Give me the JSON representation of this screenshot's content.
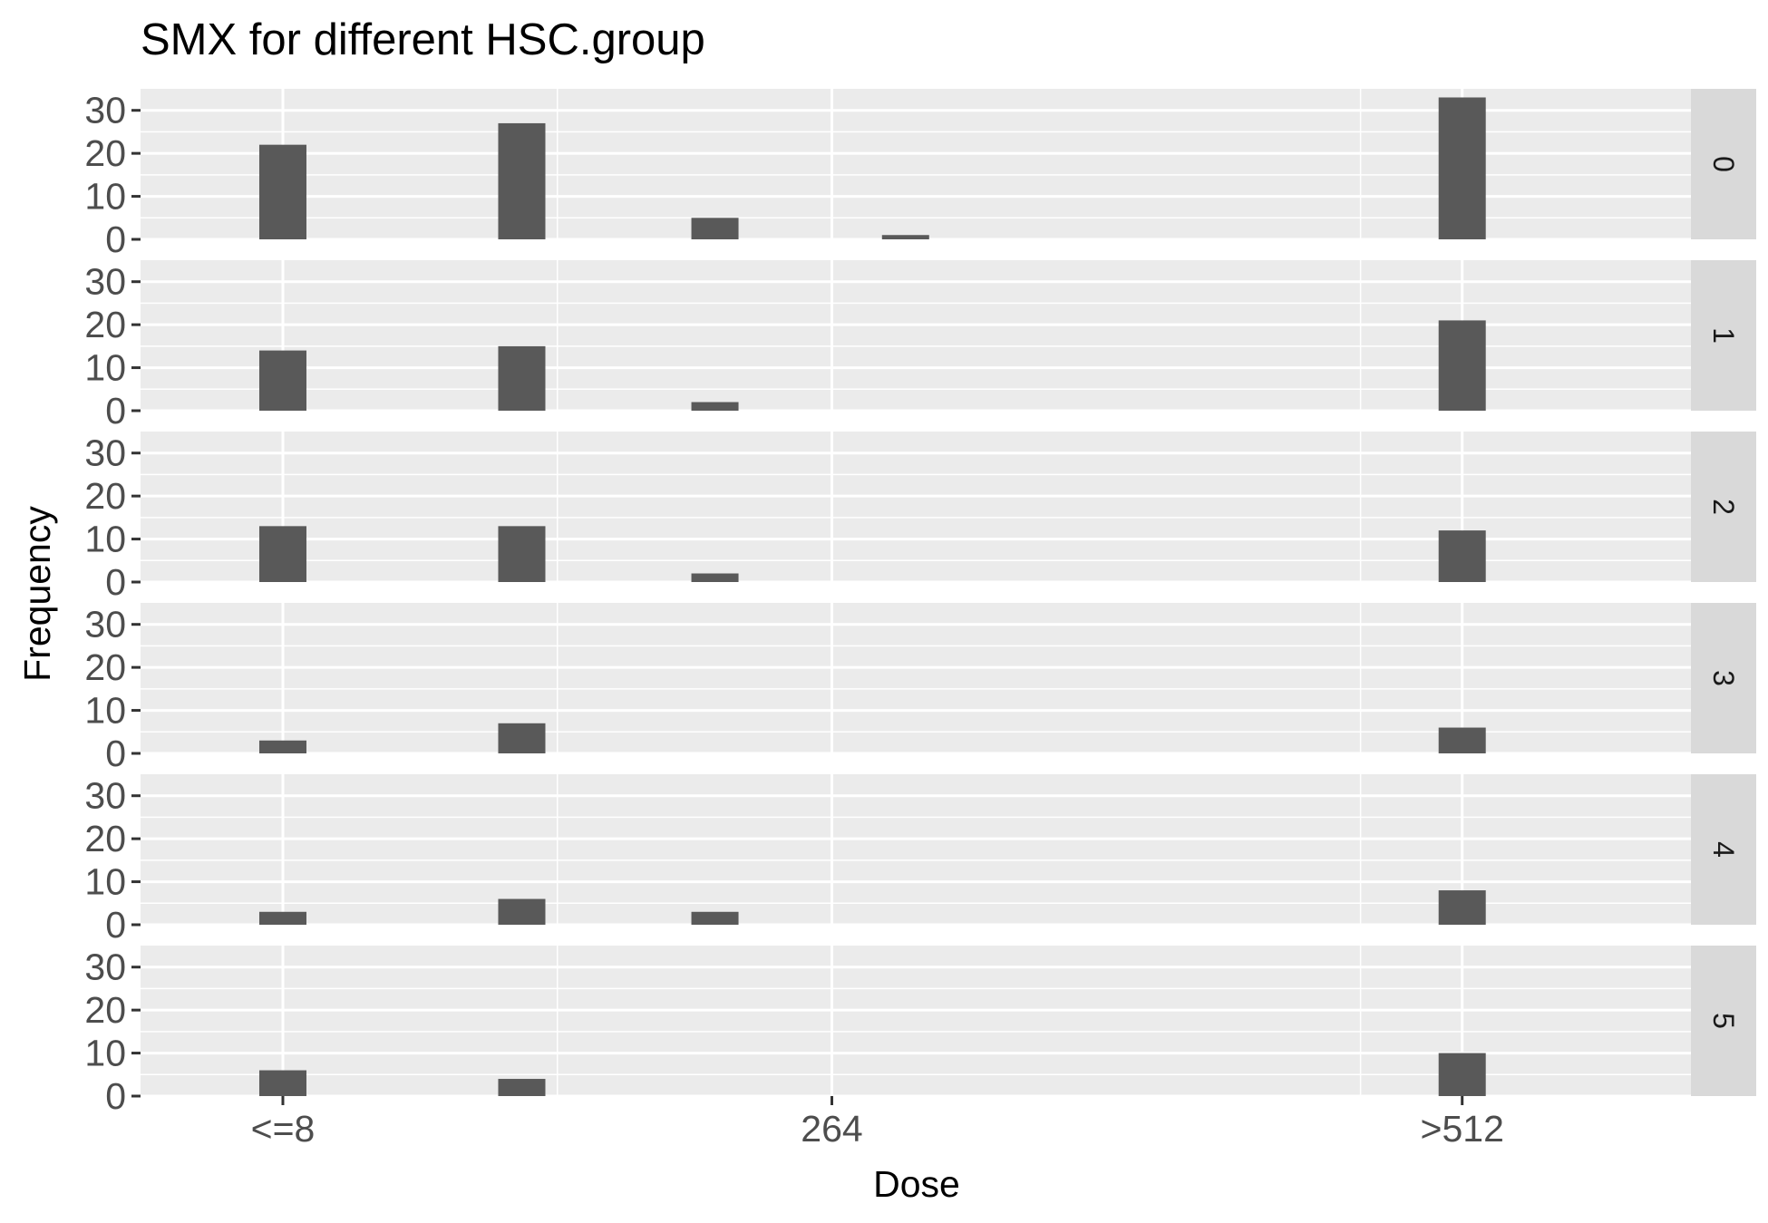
{
  "chart_data": {
    "type": "bar",
    "title": "SMX for different HSC.group",
    "xlabel": "Dose",
    "ylabel": "Frequency",
    "x_axis": {
      "range": [
        -8,
        602
      ],
      "ticks": [
        {
          "value": 48,
          "label": "<=8"
        },
        {
          "value": 264,
          "label": "264"
        },
        {
          "value": 512,
          "label": ">512"
        }
      ],
      "minor_gridlines": [
        156,
        472
      ]
    },
    "y_axis": {
      "range": [
        0,
        35
      ],
      "ticks": [
        0,
        10,
        20,
        30
      ]
    },
    "bar_positions": [
      48,
      142,
      218,
      293,
      512
    ],
    "panel_background": "#ebebeb",
    "strip_background": "#d9d9d9",
    "bar_color": "#595959",
    "grid_color": "#ffffff",
    "panels": [
      {
        "label": "0",
        "values": [
          22,
          27,
          5,
          1,
          33
        ]
      },
      {
        "label": "1",
        "values": [
          14,
          15,
          2,
          0,
          21
        ]
      },
      {
        "label": "2",
        "values": [
          13,
          13,
          2,
          0,
          12
        ]
      },
      {
        "label": "3",
        "values": [
          3,
          7,
          0,
          0,
          6
        ]
      },
      {
        "label": "4",
        "values": [
          3,
          6,
          3,
          0,
          8
        ]
      },
      {
        "label": "5",
        "values": [
          6,
          4,
          0,
          0,
          10
        ]
      }
    ]
  }
}
